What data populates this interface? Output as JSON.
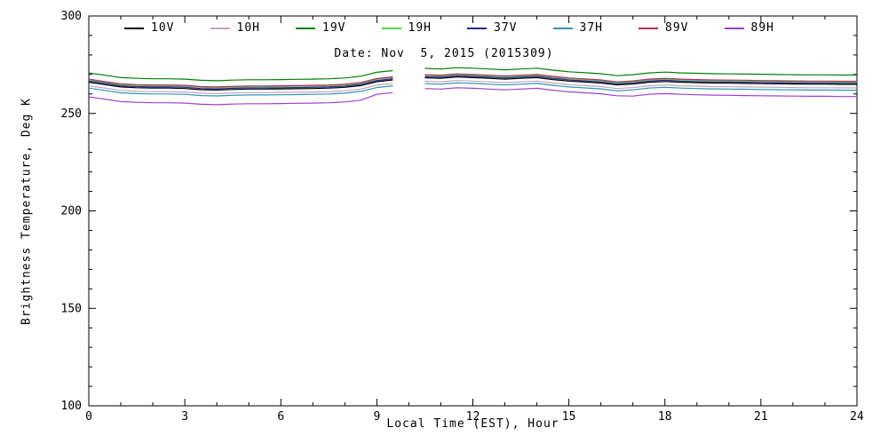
{
  "colors": {
    "background": "#ffffff",
    "axis": "#000000"
  },
  "chart_data": {
    "type": "line",
    "title": "Date: Nov  5, 2015 (2015309)",
    "xlabel": "Local Time (EST), Hour",
    "ylabel": "Brightness Temperature, Deg K",
    "xlim": [
      0,
      24
    ],
    "ylim": [
      100,
      300
    ],
    "x_major_ticks": [
      0,
      3,
      6,
      9,
      12,
      15,
      18,
      21,
      24
    ],
    "x_minor_step": 1,
    "y_major_ticks": [
      100,
      150,
      200,
      250,
      300
    ],
    "y_minor_step": 10,
    "grid": false,
    "legend_position": "top",
    "x": [
      0,
      0.5,
      1,
      1.5,
      2,
      2.5,
      3,
      3.5,
      4,
      4.5,
      5,
      5.5,
      6,
      6.5,
      7,
      7.5,
      8,
      8.5,
      9,
      9.5,
      10,
      10.5,
      11,
      11.5,
      12,
      12.5,
      13,
      13.5,
      14,
      14.5,
      15,
      15.5,
      16,
      16.5,
      17,
      17.5,
      18,
      18.5,
      19,
      19.5,
      20,
      20.5,
      21,
      21.5,
      22,
      22.5,
      23,
      23.5,
      24
    ],
    "series": [
      {
        "name": "10V",
        "color": "#000000",
        "values": [
          266.0,
          264.8,
          263.6,
          263.2,
          263.0,
          263.0,
          262.8,
          262.2,
          262.0,
          262.3,
          262.5,
          262.5,
          262.6,
          262.7,
          262.8,
          263.0,
          263.4,
          264.3,
          266.3,
          267.2,
          null,
          268.3,
          268.0,
          268.7,
          268.4,
          268.0,
          267.6,
          268.0,
          268.4,
          267.4,
          266.6,
          266.1,
          265.6,
          264.6,
          265.1,
          266.0,
          266.4,
          266.0,
          265.8,
          265.6,
          265.5,
          265.4,
          265.3,
          265.2,
          265.1,
          265.0,
          265.0,
          264.9,
          264.9
        ]
      },
      {
        "name": "10H",
        "color": "#c0a4c0",
        "values": [
          264.2,
          263.0,
          261.8,
          261.4,
          261.2,
          261.2,
          261.0,
          260.4,
          260.2,
          260.5,
          260.7,
          260.7,
          260.8,
          260.9,
          261.0,
          261.2,
          261.6,
          262.5,
          264.5,
          265.4,
          null,
          266.5,
          266.2,
          266.9,
          266.6,
          266.2,
          265.8,
          266.2,
          266.6,
          265.6,
          264.8,
          264.3,
          263.8,
          262.8,
          263.3,
          264.2,
          264.6,
          264.2,
          264.0,
          263.8,
          263.7,
          263.6,
          263.5,
          263.4,
          263.3,
          263.2,
          263.2,
          263.1,
          263.1
        ]
      },
      {
        "name": "19V",
        "color": "#008000",
        "values": [
          270.8,
          269.6,
          268.4,
          268.0,
          267.8,
          267.8,
          267.6,
          267.0,
          266.8,
          267.1,
          267.3,
          267.3,
          267.4,
          267.5,
          267.6,
          267.8,
          268.2,
          269.1,
          271.1,
          272.0,
          null,
          273.1,
          272.8,
          273.5,
          273.2,
          272.8,
          272.4,
          272.8,
          273.2,
          272.2,
          271.4,
          270.9,
          270.4,
          269.4,
          269.9,
          270.8,
          271.2,
          270.8,
          270.6,
          270.4,
          270.3,
          270.2,
          270.1,
          270.0,
          269.9,
          269.8,
          269.8,
          269.7,
          269.7
        ]
      },
      {
        "name": "19H",
        "color": "#55cc55",
        "values": [
          267.2,
          266.0,
          264.8,
          264.4,
          264.2,
          264.2,
          264.0,
          263.4,
          263.2,
          263.5,
          263.7,
          263.7,
          263.8,
          263.9,
          264.0,
          264.2,
          264.6,
          265.5,
          267.5,
          268.4,
          null,
          269.5,
          269.2,
          269.9,
          269.6,
          269.2,
          268.8,
          269.2,
          269.6,
          268.6,
          267.8,
          267.3,
          266.8,
          265.8,
          266.3,
          267.2,
          267.6,
          267.2,
          267.0,
          266.8,
          266.7,
          266.6,
          266.5,
          266.4,
          266.3,
          266.2,
          266.2,
          266.1,
          266.1
        ]
      },
      {
        "name": "37V",
        "color": "#2a2a90",
        "values": [
          266.6,
          265.4,
          264.2,
          263.8,
          263.6,
          263.6,
          263.4,
          262.8,
          262.6,
          262.9,
          263.1,
          263.1,
          263.2,
          263.3,
          263.4,
          263.6,
          264.0,
          264.9,
          266.9,
          267.8,
          null,
          268.9,
          268.6,
          269.3,
          269.0,
          268.6,
          268.2,
          268.6,
          269.0,
          268.0,
          267.2,
          266.7,
          266.2,
          265.2,
          265.7,
          266.6,
          267.0,
          266.6,
          266.4,
          266.2,
          266.1,
          266.0,
          265.9,
          265.8,
          265.7,
          265.6,
          265.6,
          265.5,
          265.5
        ]
      },
      {
        "name": "37H",
        "color": "#2e96ac",
        "values": [
          263.0,
          261.8,
          260.6,
          260.2,
          260.0,
          260.0,
          259.8,
          259.2,
          259.0,
          259.3,
          259.5,
          259.5,
          259.6,
          259.7,
          259.8,
          260.0,
          260.4,
          261.3,
          263.3,
          264.2,
          null,
          265.3,
          265.0,
          265.7,
          265.4,
          265.0,
          264.6,
          265.0,
          265.4,
          264.4,
          263.6,
          263.1,
          262.6,
          261.6,
          262.1,
          263.0,
          263.4,
          263.0,
          262.8,
          262.6,
          262.5,
          262.4,
          262.3,
          262.2,
          262.1,
          262.0,
          262.0,
          261.9,
          261.9
        ]
      },
      {
        "name": "89V",
        "color": "#b03060",
        "values": [
          267.6,
          266.4,
          265.2,
          264.8,
          264.6,
          264.6,
          264.4,
          263.8,
          263.6,
          263.9,
          264.1,
          264.1,
          264.2,
          264.3,
          264.4,
          264.6,
          265.0,
          265.9,
          267.9,
          268.8,
          null,
          269.9,
          269.6,
          270.3,
          270.0,
          269.6,
          269.2,
          269.6,
          270.0,
          269.0,
          268.2,
          267.7,
          267.2,
          266.2,
          266.7,
          267.6,
          268.0,
          267.6,
          267.4,
          267.2,
          267.1,
          267.0,
          266.9,
          266.8,
          266.7,
          266.6,
          266.6,
          266.5,
          266.5
        ]
      },
      {
        "name": "89H",
        "color": "#a040cc",
        "values": [
          258.5,
          257.3,
          256.1,
          255.7,
          255.5,
          255.5,
          255.3,
          254.7,
          254.5,
          254.8,
          255.0,
          255.0,
          255.1,
          255.2,
          255.3,
          255.5,
          255.9,
          256.8,
          259.8,
          260.7,
          null,
          262.8,
          262.5,
          263.2,
          262.9,
          262.5,
          262.1,
          262.5,
          262.9,
          261.9,
          261.1,
          260.6,
          260.1,
          259.1,
          258.9,
          259.8,
          260.2,
          259.8,
          259.6,
          259.4,
          259.3,
          259.2,
          259.1,
          259.0,
          258.9,
          258.8,
          258.8,
          258.7,
          258.7
        ]
      }
    ]
  }
}
